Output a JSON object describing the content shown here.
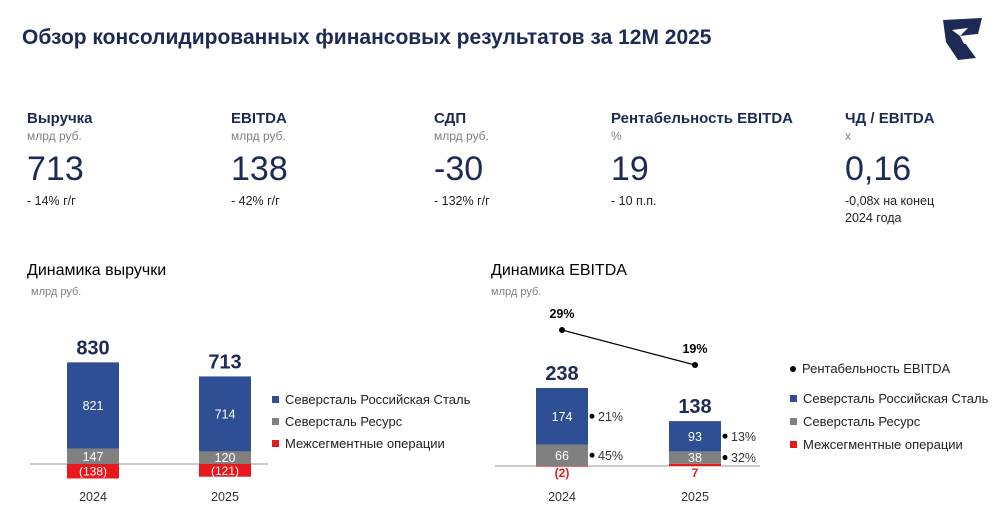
{
  "page": {
    "title": "Обзор консолидированных финансовых результатов за 12М 2025"
  },
  "kpis": [
    {
      "name": "Выручка",
      "unit": "млрд руб.",
      "value": "713",
      "change": "- 14% г/г"
    },
    {
      "name": "EBITDA",
      "unit": "млрд руб.",
      "value": "138",
      "change": "- 42% г/г"
    },
    {
      "name": "СДП",
      "unit": "млрд руб.",
      "value": "-30",
      "change": "- 132% г/г"
    },
    {
      "name": "Рентабельность EBITDA",
      "unit": "%",
      "value": "19",
      "change": "- 10 п.п."
    },
    {
      "name": "ЧД / EBITDA",
      "unit": "x",
      "value": "0,16",
      "change": "-0,08х на конец",
      "change2": "2024 года"
    }
  ],
  "colors": {
    "rs": "#2f4f95",
    "resurs": "#808080",
    "intersegment": "#e8191c",
    "title": "#1c2a55"
  },
  "chart_data": [
    {
      "type": "bar",
      "title": "Динамика выручки",
      "subtitle": "млрд руб.",
      "categories": [
        "2024",
        "2025"
      ],
      "totals": [
        "830",
        "713"
      ],
      "series": [
        {
          "name": "Северсталь Российская Сталь",
          "values": [
            821,
            714
          ],
          "labels": [
            "821",
            "714"
          ],
          "color": "#2f4f95"
        },
        {
          "name": "Северсталь Ресурс",
          "values": [
            147,
            120
          ],
          "labels": [
            "147",
            "120"
          ],
          "color": "#808080"
        },
        {
          "name": "Межсегментные операции",
          "values": [
            -138,
            -121
          ],
          "labels": [
            "(138)",
            "(121)"
          ],
          "color": "#e8191c"
        }
      ]
    },
    {
      "type": "bar",
      "title": "Динамика EBITDA",
      "subtitle": "млрд руб.",
      "categories": [
        "2024",
        "2025"
      ],
      "totals": [
        "238",
        "138"
      ],
      "series": [
        {
          "name": "Северсталь Российская Сталь",
          "values": [
            174,
            93
          ],
          "labels": [
            "174",
            "93"
          ],
          "color": "#2f4f95",
          "margins": [
            "21%",
            "13%"
          ]
        },
        {
          "name": "Северсталь Ресурс",
          "values": [
            66,
            38
          ],
          "labels": [
            "66",
            "38"
          ],
          "color": "#808080",
          "margins": [
            "45%",
            "32%"
          ]
        },
        {
          "name": "Межсегментные операции",
          "values": [
            -2,
            7
          ],
          "labels": [
            "(2)",
            "7"
          ],
          "color": "#e8191c"
        }
      ],
      "line": {
        "name": "Рентабельность EBITDA",
        "values": [
          29,
          19
        ],
        "labels": [
          "29%",
          "19%"
        ]
      }
    }
  ]
}
